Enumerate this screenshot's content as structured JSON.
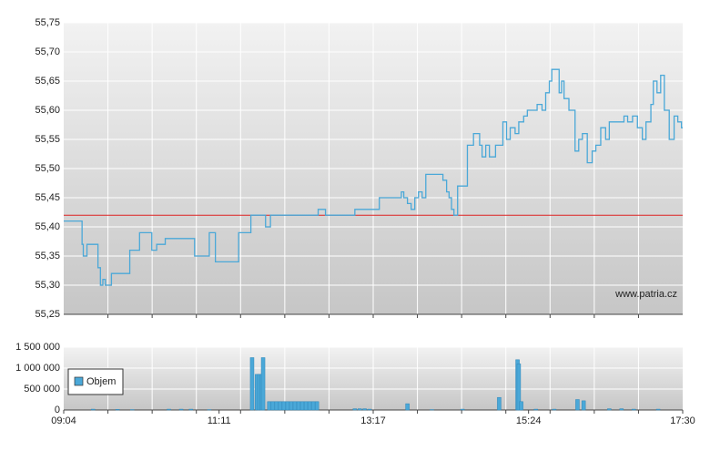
{
  "chart_data": [
    {
      "type": "line",
      "color": "#4aa8d8",
      "xlim": [
        "09:04",
        "17:30"
      ],
      "ylim": [
        55.25,
        55.75
      ],
      "yticks": [
        {
          "value": 55.25,
          "label": "55,25"
        },
        {
          "value": 55.3,
          "label": "55,30"
        },
        {
          "value": 55.35,
          "label": "55,35"
        },
        {
          "value": 55.4,
          "label": "55,40"
        },
        {
          "value": 55.45,
          "label": "55,45"
        },
        {
          "value": 55.5,
          "label": "55,50"
        },
        {
          "value": 55.55,
          "label": "55,55"
        },
        {
          "value": 55.6,
          "label": "55,60"
        },
        {
          "value": 55.65,
          "label": "55,65"
        },
        {
          "value": 55.7,
          "label": "55,70"
        },
        {
          "value": 55.75,
          "label": "55,75"
        }
      ],
      "grid": true,
      "reference_line": 55.42,
      "reference_color": "#dd2222",
      "watermark": "www.patria.cz",
      "x": [
        "09:04",
        "09:17",
        "09:19",
        "09:20",
        "09:23",
        "09:30",
        "09:32",
        "09:34",
        "09:36",
        "09:38",
        "09:43",
        "09:56",
        "09:58",
        "10:04",
        "10:06",
        "10:15",
        "10:16",
        "10:20",
        "10:27",
        "10:50",
        "10:51",
        "11:02",
        "11:03",
        "11:07",
        "11:08",
        "11:25",
        "11:27",
        "11:34",
        "11:37",
        "11:48",
        "11:49",
        "11:52",
        "11:53",
        "12:31",
        "12:32",
        "12:37",
        "12:38",
        "13:01",
        "13:02",
        "13:21",
        "13:22",
        "13:39",
        "13:40",
        "13:42",
        "13:45",
        "13:48",
        "13:51",
        "13:54",
        "13:57",
        "14:00",
        "14:13",
        "14:14",
        "14:17",
        "14:19",
        "14:21",
        "14:23",
        "14:25",
        "14:26",
        "14:31",
        "14:34",
        "14:39",
        "14:42",
        "14:44",
        "14:46",
        "14:49",
        "14:52",
        "14:57",
        "15:01",
        "15:03",
        "15:06",
        "15:09",
        "15:13",
        "15:16",
        "15:20",
        "15:23",
        "15:27",
        "15:31",
        "15:35",
        "15:38",
        "15:41",
        "15:43",
        "15:47",
        "15:49",
        "15:51",
        "15:53",
        "15:57",
        "16:01",
        "16:02",
        "16:05",
        "16:08",
        "16:12",
        "16:16",
        "16:19",
        "16:23",
        "16:27",
        "16:30",
        "16:38",
        "16:42",
        "16:45",
        "16:49",
        "16:53",
        "16:57",
        "17:00",
        "17:04",
        "17:06",
        "17:09",
        "17:12",
        "17:15",
        "17:19",
        "17:23",
        "17:26",
        "17:29"
      ],
      "values": [
        55.41,
        55.41,
        55.37,
        55.35,
        55.37,
        55.37,
        55.33,
        55.3,
        55.31,
        55.3,
        55.32,
        55.32,
        55.36,
        55.36,
        55.39,
        55.39,
        55.36,
        55.37,
        55.38,
        55.38,
        55.35,
        55.35,
        55.39,
        55.39,
        55.34,
        55.34,
        55.39,
        55.39,
        55.42,
        55.42,
        55.4,
        55.4,
        55.42,
        55.42,
        55.43,
        55.43,
        55.42,
        55.42,
        55.43,
        55.43,
        55.45,
        55.45,
        55.46,
        55.45,
        55.44,
        55.43,
        55.45,
        55.46,
        55.45,
        55.49,
        55.49,
        55.48,
        55.46,
        55.45,
        55.43,
        55.42,
        55.42,
        55.47,
        55.47,
        55.54,
        55.56,
        55.56,
        55.54,
        55.52,
        55.54,
        55.52,
        55.54,
        55.54,
        55.58,
        55.55,
        55.57,
        55.56,
        55.58,
        55.59,
        55.6,
        55.6,
        55.61,
        55.6,
        55.63,
        55.65,
        55.67,
        55.67,
        55.63,
        55.65,
        55.62,
        55.6,
        55.6,
        55.53,
        55.55,
        55.56,
        55.51,
        55.53,
        55.54,
        55.57,
        55.55,
        55.58,
        55.58,
        55.59,
        55.58,
        55.59,
        55.57,
        55.55,
        55.58,
        55.61,
        55.65,
        55.63,
        55.66,
        55.6,
        55.55,
        55.59,
        55.58,
        55.57
      ]
    },
    {
      "type": "bar",
      "xlim": [
        "09:04",
        "17:30"
      ],
      "xticks": [
        "09:04",
        "11:11",
        "13:17",
        "15:24",
        "17:30"
      ],
      "ylim": [
        0,
        1500000
      ],
      "yticks": [
        0,
        {
          "value": 500000,
          "label": "500 000"
        },
        {
          "value": 1000000,
          "label": "1 000 000"
        },
        {
          "value": 1500000,
          "label": "1 500 000"
        }
      ],
      "grid": true,
      "legend": "left",
      "x": [
        "09:28",
        "09:48",
        "10:00",
        "10:30",
        "10:40",
        "10:48",
        "11:03",
        "11:38",
        "11:42",
        "11:44",
        "11:46",
        "11:47",
        "11:52",
        "11:55",
        "11:58",
        "12:01",
        "12:04",
        "12:07",
        "12:10",
        "12:13",
        "12:16",
        "12:19",
        "12:22",
        "12:25",
        "12:28",
        "12:31",
        "13:02",
        "13:06",
        "13:10",
        "13:14",
        "13:45",
        "14:05",
        "14:30",
        "15:00",
        "15:15",
        "15:16",
        "15:18",
        "15:30",
        "15:45",
        "16:04",
        "16:09",
        "16:30",
        "16:40",
        "16:50",
        "17:10"
      ],
      "series": [
        {
          "name": "Objem",
          "color": "#4aa8d8",
          "values": [
            20000,
            15000,
            10000,
            20000,
            20000,
            20000,
            10000,
            1250000,
            850000,
            850000,
            850000,
            1250000,
            200000,
            200000,
            200000,
            200000,
            200000,
            200000,
            200000,
            200000,
            200000,
            200000,
            200000,
            200000,
            200000,
            200000,
            30000,
            30000,
            30000,
            20000,
            150000,
            10000,
            20000,
            300000,
            1200000,
            1100000,
            200000,
            20000,
            20000,
            250000,
            220000,
            30000,
            30000,
            20000,
            20000
          ]
        }
      ]
    }
  ]
}
